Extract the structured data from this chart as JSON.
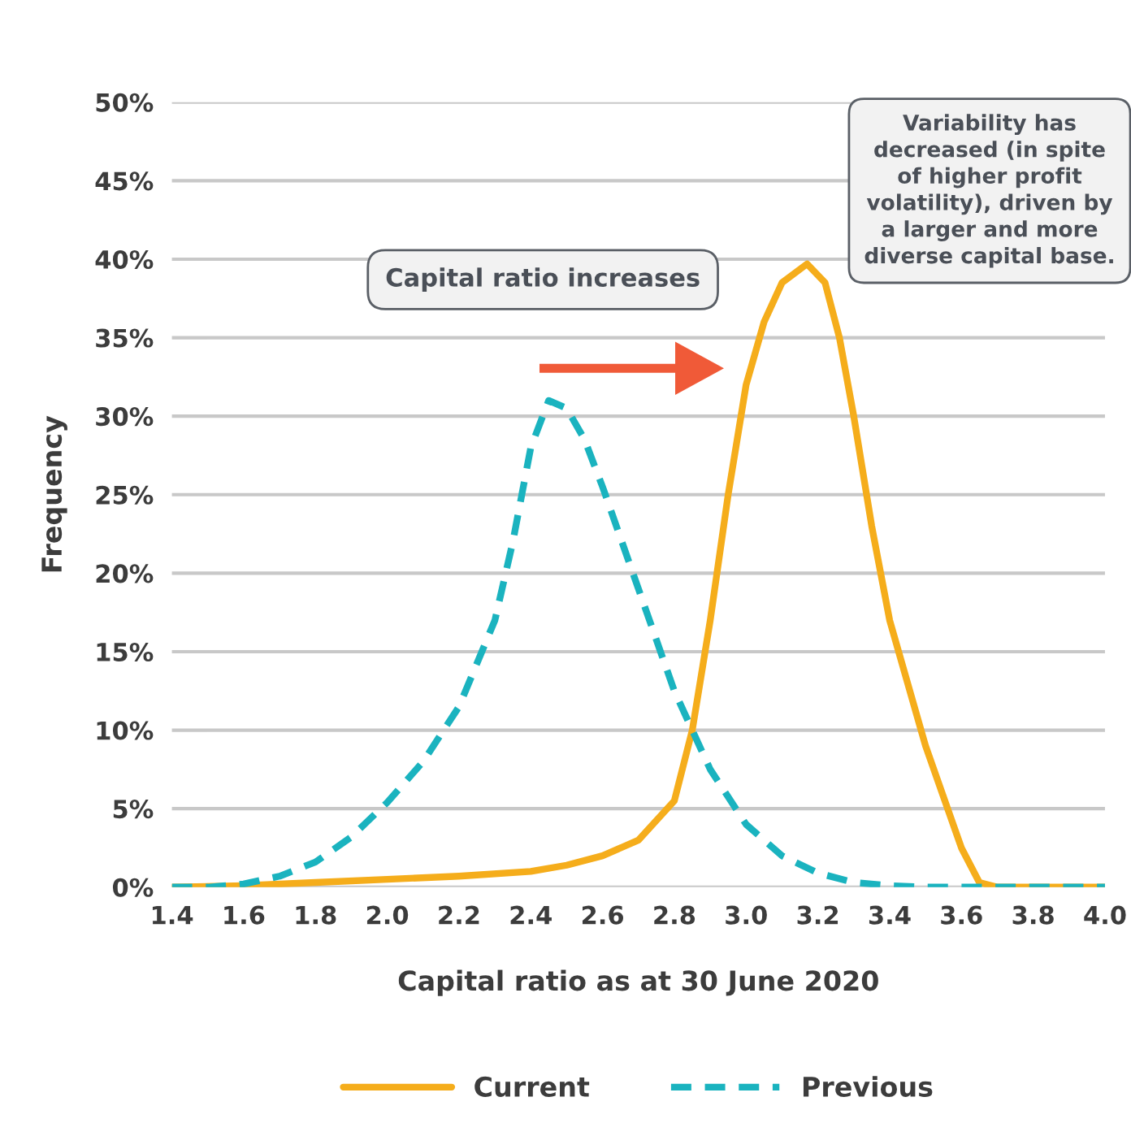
{
  "chart_data": {
    "type": "line",
    "xlabel": "Capital ratio as at 30 June 2020",
    "ylabel": "Frequency",
    "xlim": [
      1.4,
      4.0
    ],
    "ylim": [
      0,
      50
    ],
    "xticks": [
      1.4,
      1.6,
      1.8,
      {
        "value": 2,
        "label": "2.0"
      },
      2.2,
      2.4,
      2.6,
      2.8,
      {
        "value": 3,
        "label": "3.0"
      },
      3.2,
      3.4,
      3.6,
      3.8,
      {
        "value": 4,
        "label": "4.0"
      }
    ],
    "yticks": [
      {
        "value": 0,
        "label": "0%"
      },
      {
        "value": 5,
        "label": "5%"
      },
      {
        "value": 10,
        "label": "10%"
      },
      {
        "value": 15,
        "label": "15%"
      },
      {
        "value": 20,
        "label": "20%"
      },
      {
        "value": 25,
        "label": "25%"
      },
      {
        "value": 30,
        "label": "30%"
      },
      {
        "value": 35,
        "label": "35%"
      },
      {
        "value": 40,
        "label": "40%"
      },
      {
        "value": 45,
        "label": "45%"
      },
      {
        "value": 50,
        "label": "50%"
      }
    ],
    "grid": "y",
    "legend": "bottom",
    "series": [
      {
        "name": "Current",
        "color": "#f5ad1b",
        "line_style": "solid",
        "x": [
          1.4,
          1.6,
          1.8,
          2.0,
          2.2,
          2.4,
          2.5,
          2.6,
          2.7,
          2.8,
          2.85,
          2.9,
          2.95,
          3.0,
          3.05,
          3.1,
          3.17,
          3.22,
          3.26,
          3.3,
          3.35,
          3.4,
          3.5,
          3.6,
          3.65,
          3.7,
          3.8,
          4.0
        ],
        "values": [
          0,
          0.1,
          0.3,
          0.5,
          0.7,
          1.0,
          1.4,
          2.0,
          3.0,
          5.5,
          10,
          17,
          25,
          32,
          36,
          38.5,
          39.7,
          38.5,
          35,
          30,
          23,
          17,
          9,
          2.5,
          0.3,
          0,
          0,
          0
        ]
      },
      {
        "name": "Previous",
        "color": "#1ab3bf",
        "line_style": "dashed",
        "x": [
          1.4,
          1.5,
          1.6,
          1.7,
          1.8,
          1.9,
          2.0,
          2.1,
          2.2,
          2.3,
          2.35,
          2.4,
          2.45,
          2.5,
          2.55,
          2.6,
          2.7,
          2.8,
          2.9,
          3.0,
          3.1,
          3.2,
          3.3,
          3.4,
          3.5,
          3.6,
          3.8,
          4.0
        ],
        "values": [
          0,
          0,
          0.2,
          0.7,
          1.6,
          3.2,
          5.4,
          8.0,
          11.5,
          17,
          22,
          28,
          31,
          30.5,
          28.5,
          25.5,
          19,
          12.5,
          7.5,
          4,
          2,
          0.9,
          0.3,
          0.1,
          0,
          0,
          0,
          0
        ]
      }
    ],
    "annotations": [
      "Capital ratio increases",
      "Variability has decreased (in spite of higher profit volatility), driven by a larger and more diverse capital base."
    ]
  }
}
